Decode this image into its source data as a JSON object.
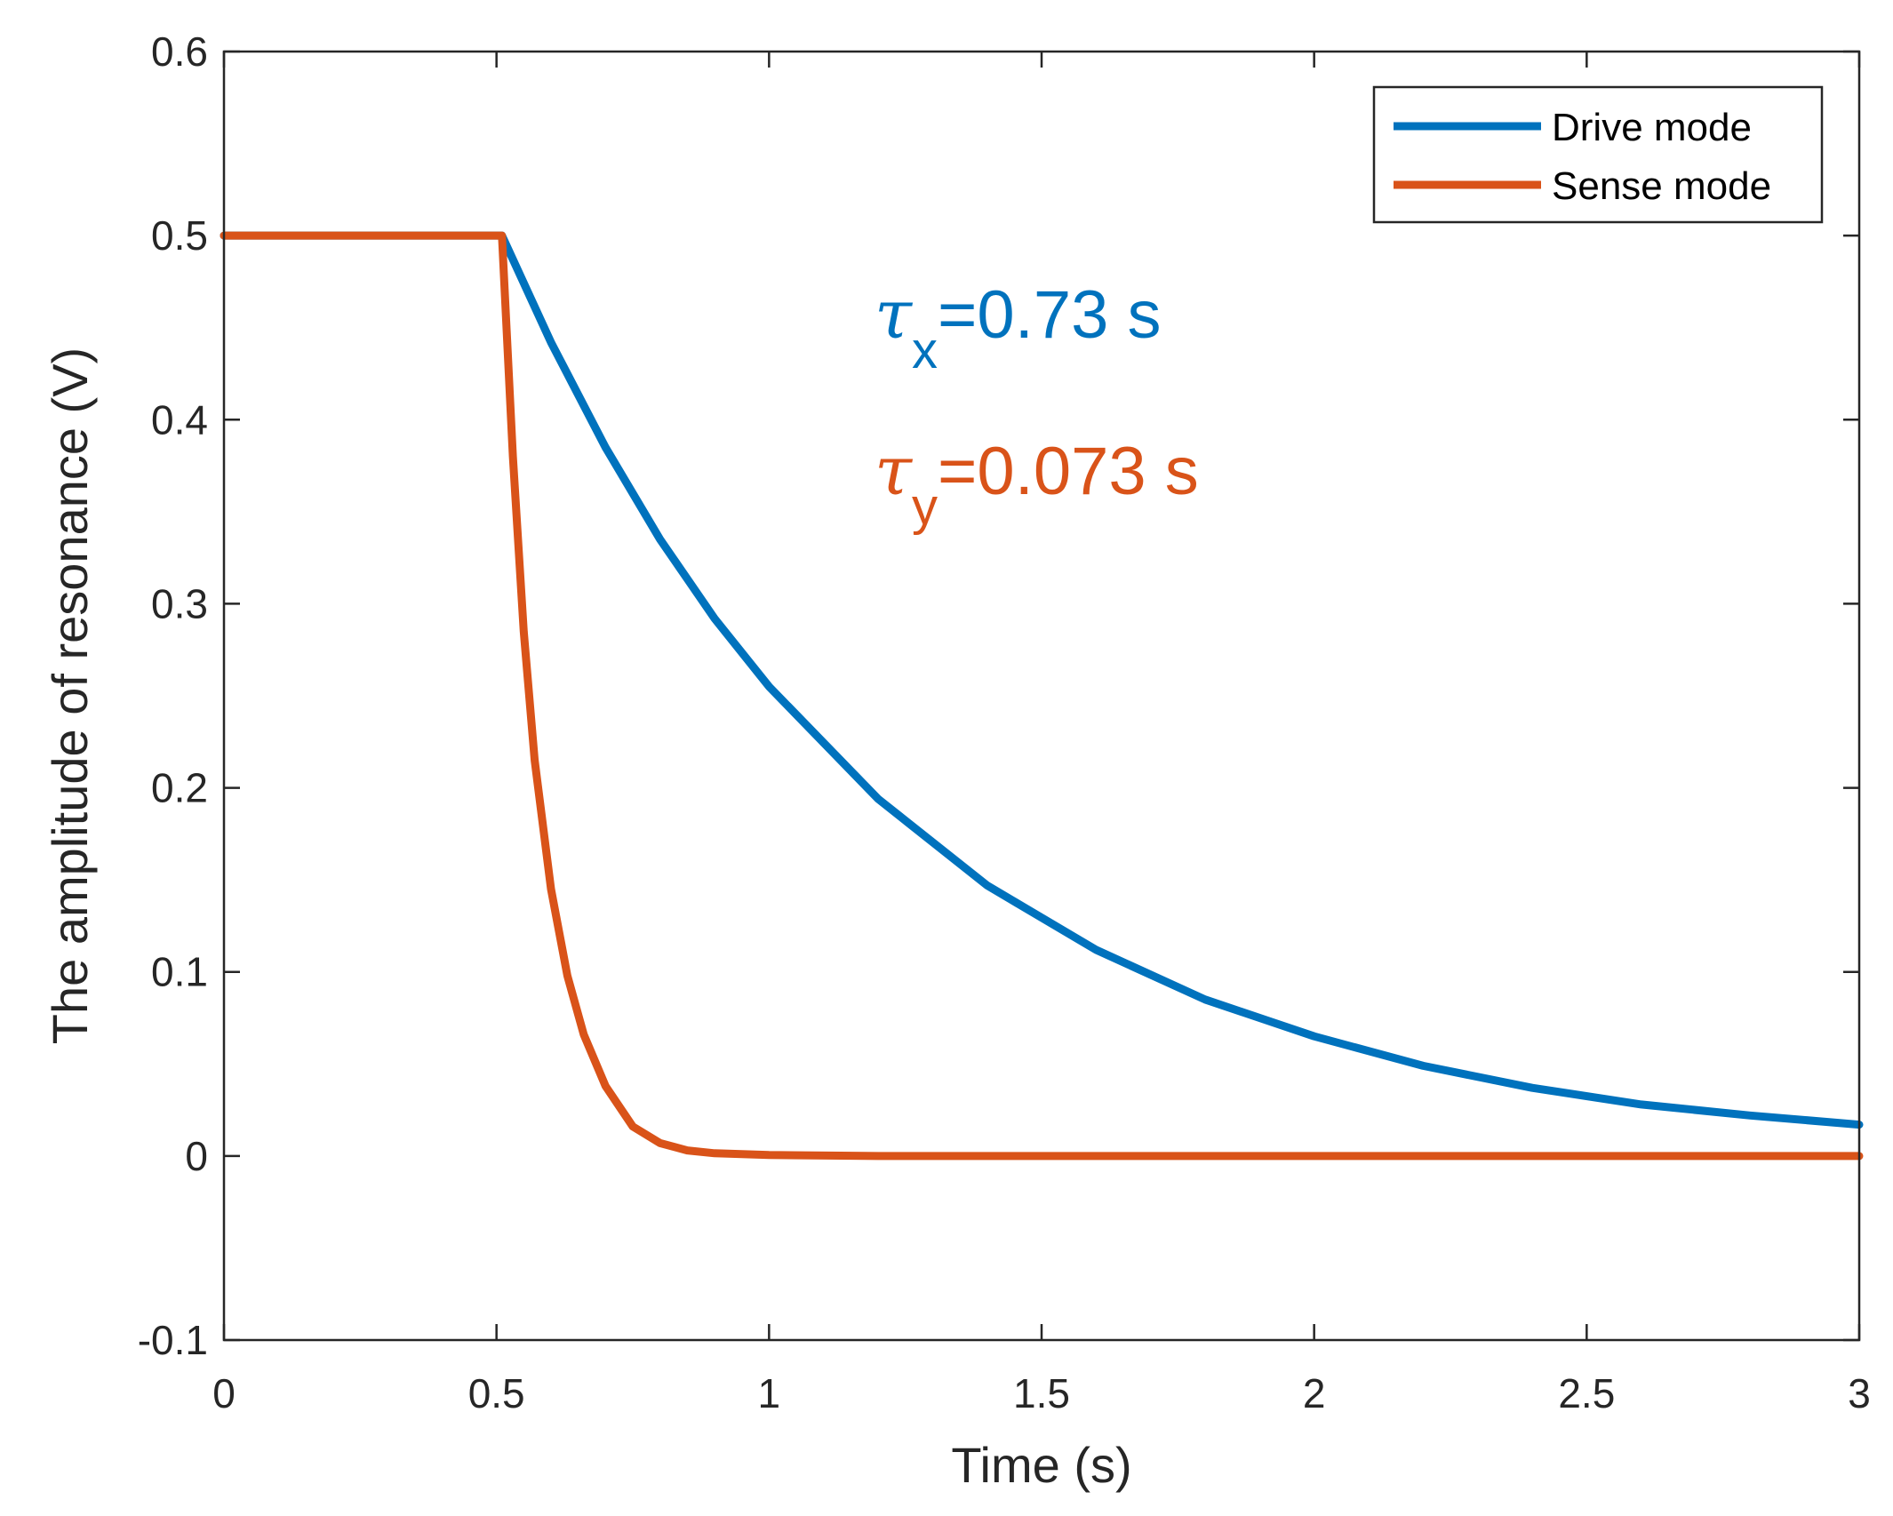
{
  "chart_data": {
    "type": "line",
    "title": "",
    "xlabel": "Time (s)",
    "ylabel": "The amplitude of resonance (V)",
    "xlim": [
      0,
      3
    ],
    "ylim": [
      -0.1,
      0.6
    ],
    "xticks": [
      0,
      0.5,
      1,
      1.5,
      2,
      2.5,
      3
    ],
    "xtick_labels": [
      "0",
      "0.5",
      "1",
      "1.5",
      "2",
      "2.5",
      "3"
    ],
    "yticks": [
      -0.1,
      0,
      0.1,
      0.2,
      0.3,
      0.4,
      0.5,
      0.6
    ],
    "ytick_labels": [
      "-0.1",
      "0",
      "0.1",
      "0.2",
      "0.3",
      "0.4",
      "0.5",
      "0.6"
    ],
    "grid": false,
    "legend_position": "top-right",
    "series": [
      {
        "name": "Drive mode",
        "color": "#0072BD",
        "x": [
          0,
          0.1,
          0.2,
          0.3,
          0.4,
          0.51,
          0.6,
          0.7,
          0.8,
          0.9,
          1.0,
          1.2,
          1.4,
          1.6,
          1.8,
          2.0,
          2.2,
          2.4,
          2.6,
          2.8,
          3.0
        ],
        "values": [
          0.5,
          0.5,
          0.5,
          0.5,
          0.5,
          0.5,
          0.442,
          0.385,
          0.335,
          0.292,
          0.255,
          0.194,
          0.147,
          0.112,
          0.085,
          0.065,
          0.049,
          0.037,
          0.028,
          0.022,
          0.017
        ]
      },
      {
        "name": "Sense mode",
        "color": "#D95319",
        "x": [
          0,
          0.1,
          0.2,
          0.3,
          0.4,
          0.51,
          0.53,
          0.55,
          0.57,
          0.6,
          0.63,
          0.66,
          0.7,
          0.75,
          0.8,
          0.85,
          0.9,
          1.0,
          1.2,
          1.5,
          2.0,
          2.5,
          3.0
        ],
        "values": [
          0.5,
          0.5,
          0.5,
          0.5,
          0.5,
          0.5,
          0.38,
          0.285,
          0.215,
          0.145,
          0.098,
          0.066,
          0.038,
          0.016,
          0.007,
          0.003,
          0.0015,
          0.0005,
          0.0,
          0.0,
          0.0,
          0.0,
          0.0
        ]
      }
    ],
    "annotations": [
      {
        "symbol": "τ",
        "subscript": "x",
        "text": "=0.73 s",
        "color": "#0072BD"
      },
      {
        "symbol": "τ",
        "subscript": "y",
        "text": "=0.073 s",
        "color": "#D95319"
      }
    ]
  }
}
